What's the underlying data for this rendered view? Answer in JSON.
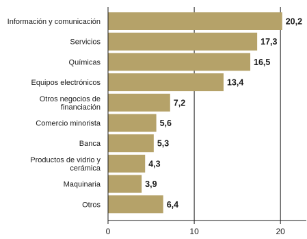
{
  "chart_data": {
    "type": "bar",
    "orientation": "horizontal",
    "title": "",
    "xlabel": "",
    "ylabel": "",
    "categories": [
      "Información y comunicación",
      "Servicios",
      "Químicas",
      "Equipos electrónicos",
      "Otros negocios de financiación",
      "Comercio minorista",
      "Banca",
      "Productos de vidrio y cerámica",
      "Maquinaria",
      "Otros"
    ],
    "category_lines": [
      [
        "Información y comunicación"
      ],
      [
        "Servicios"
      ],
      [
        "Químicas"
      ],
      [
        "Equipos electrónicos"
      ],
      [
        "Otros negocios de",
        "financiación"
      ],
      [
        "Comercio minorista"
      ],
      [
        "Banca"
      ],
      [
        "Productos de vidrio y",
        "cerámica"
      ],
      [
        "Maquinaria"
      ],
      [
        "Otros"
      ]
    ],
    "values": [
      20.2,
      17.3,
      16.5,
      13.4,
      7.2,
      5.6,
      5.3,
      4.3,
      3.9,
      6.4
    ],
    "value_labels": [
      "20,2",
      "17,3",
      "16,5",
      "13,4",
      "7,2",
      "5,6",
      "5,3",
      "4,3",
      "3,9",
      "6,4"
    ],
    "xlim": [
      0,
      23
    ],
    "xticks": [
      0,
      10,
      20
    ],
    "xtick_labels": [
      "0",
      "10",
      "20"
    ],
    "grid": "vertical lines at ticks",
    "legend": "none",
    "colors": {
      "bar": "#b5a269",
      "axis": "#1a1a1a",
      "text": "#1a1a1a"
    }
  }
}
